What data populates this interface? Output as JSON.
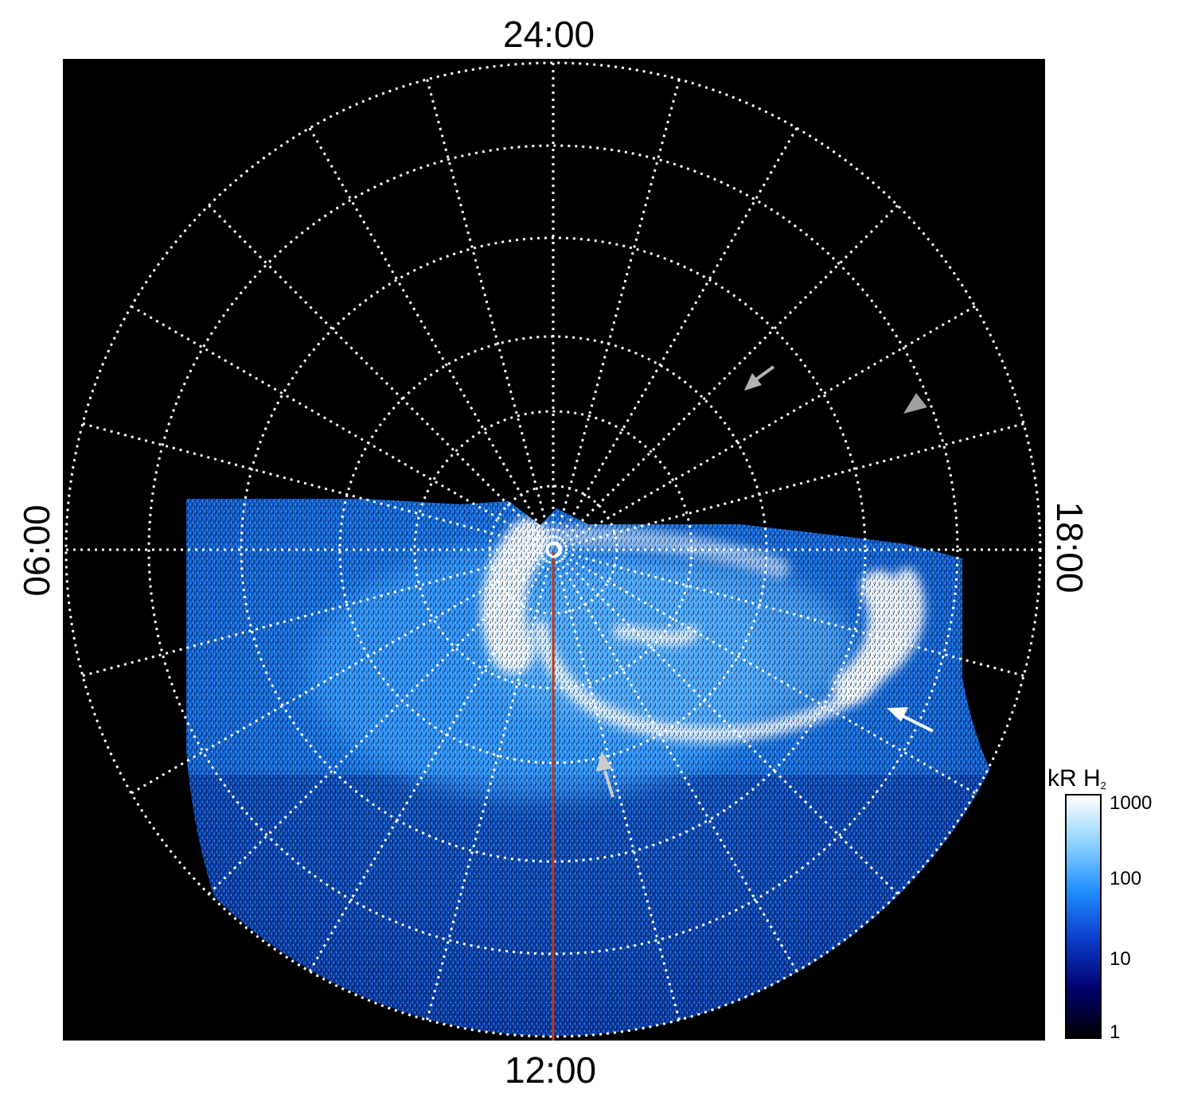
{
  "labels": {
    "top": "24:00",
    "bottom": "12:00",
    "left": "06:00",
    "right": "18:00"
  },
  "colorbar": {
    "title_main": "kR H",
    "title_sub": "2",
    "ticks": [
      "1000",
      "100",
      "10",
      "1"
    ],
    "scale": "log",
    "range": [
      1,
      1000
    ],
    "colors": [
      "#000000",
      "#00006e",
      "#0a3cc8",
      "#1e8cff",
      "#8cd2ff",
      "#ffffff"
    ]
  },
  "colors": {
    "background": "#000000",
    "grid": "#ffffff",
    "noon_line": "#c0391b",
    "arrow_gray": "#b4b4b4",
    "arrow_white": "#ffffff"
  },
  "icons": [
    "arrow-icon"
  ]
}
